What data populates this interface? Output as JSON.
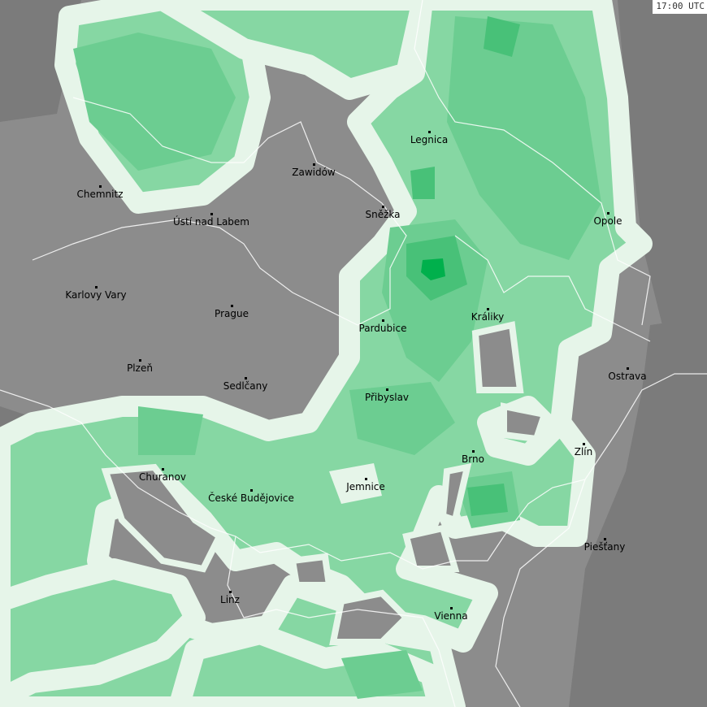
{
  "timestamp": "17:00 UTC",
  "colors": {
    "background": "#8c8c8c",
    "dark_land": "#7b7b7b",
    "rain_rim": "#e6f5e9",
    "rain_light": "#86d7a3",
    "rain_medium": "#6ccd91",
    "rain_strong": "#48c178",
    "rain_heavy": "#00b04c",
    "border": "#ffffff"
  },
  "cities": [
    {
      "name": "Legnica"
    },
    {
      "name": "Zawidów"
    },
    {
      "name": "Chemnitz"
    },
    {
      "name": "Sněžka"
    },
    {
      "name": "Ústí nad Labem"
    },
    {
      "name": "Opole"
    },
    {
      "name": "Karlovy Vary"
    },
    {
      "name": "Prague"
    },
    {
      "name": "Pardubice"
    },
    {
      "name": "Králiky"
    },
    {
      "name": "Plzeň"
    },
    {
      "name": "Ostrava"
    },
    {
      "name": "Sedlčany"
    },
    {
      "name": "Přibyslav"
    },
    {
      "name": "Zlín"
    },
    {
      "name": "Brno"
    },
    {
      "name": "Churanov"
    },
    {
      "name": "Jemnice"
    },
    {
      "name": "České Budějovice"
    },
    {
      "name": "Piešťany"
    },
    {
      "name": "Linz"
    },
    {
      "name": "Vienna"
    }
  ]
}
